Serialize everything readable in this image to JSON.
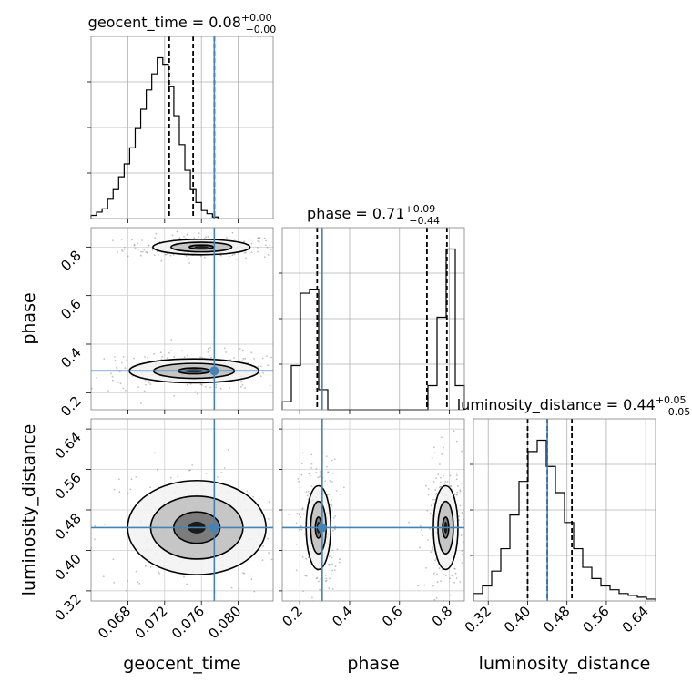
{
  "chart_data": [
    {
      "type": "histogram",
      "panel": "geocent_time",
      "title_param": "geocent_time",
      "title_median": "0.08",
      "title_plus": "+0.00",
      "title_minus": "−0.00",
      "xlim": [
        0.064,
        0.0838
      ],
      "bins_left": 0.064,
      "bin_width": 0.0006,
      "counts": [
        2,
        4,
        6,
        12,
        18,
        26,
        34,
        44,
        56,
        68,
        80,
        90,
        100,
        96,
        82,
        64,
        46,
        30,
        18,
        10,
        5,
        3,
        1
      ],
      "quantiles": [
        0.0725,
        0.0751,
        0.0774
      ],
      "injection": 0.0774
    },
    {
      "type": "histogram",
      "panel": "phase",
      "title_param": "phase",
      "title_median": "0.71",
      "title_plus": "+0.09",
      "title_minus": "−0.44",
      "xlim": [
        0.13,
        0.86
      ],
      "bins_left": 0.13,
      "bin_width": 0.0365,
      "counts": [
        4,
        22,
        58,
        60,
        10,
        0,
        0,
        0,
        0,
        0,
        0,
        0,
        0,
        0,
        0,
        0,
        12,
        46,
        80,
        12
      ],
      "quantiles": [
        0.27,
        0.71,
        0.79
      ],
      "injection": 0.29
    },
    {
      "type": "histogram",
      "panel": "luminosity_distance",
      "title_param": "luminosity_distance",
      "title_median": "0.44",
      "title_plus": "+0.05",
      "title_minus": "−0.05",
      "xlim": [
        0.29,
        0.66
      ],
      "bins_left": 0.29,
      "bin_width": 0.0185,
      "counts": [
        4,
        8,
        16,
        28,
        46,
        64,
        80,
        86,
        72,
        58,
        42,
        28,
        18,
        12,
        8,
        6,
        4,
        3,
        2,
        1
      ],
      "quantiles": [
        0.4,
        0.44,
        0.49
      ],
      "injection": 0.44
    },
    {
      "type": "contour",
      "panel": "phase vs geocent_time",
      "x_param": "geocent_time",
      "y_param": "phase",
      "xlim": [
        0.064,
        0.0838
      ],
      "ylim": [
        0.13,
        0.88
      ],
      "modes": [
        {
          "cx": 0.076,
          "cy": 0.8,
          "sx": 0.003,
          "sy": 0.018
        },
        {
          "cx": 0.0752,
          "cy": 0.29,
          "sx": 0.004,
          "sy": 0.028
        }
      ],
      "contour_levels": [
        0.4,
        1.0,
        1.6
      ],
      "truth": {
        "x": 0.0774,
        "y": 0.29
      }
    },
    {
      "type": "contour",
      "panel": "luminosity_distance vs geocent_time",
      "x_param": "geocent_time",
      "y_param": "luminosity_distance",
      "xlim": [
        0.064,
        0.0838
      ],
      "ylim": [
        0.3,
        0.66
      ],
      "modes": [
        {
          "cx": 0.0755,
          "cy": 0.445,
          "sx": 0.0038,
          "sy": 0.047
        }
      ],
      "contour_levels": [
        0.6,
        1.2,
        1.8
      ],
      "truth": {
        "x": 0.0774,
        "y": 0.445
      }
    },
    {
      "type": "contour",
      "panel": "luminosity_distance vs phase",
      "x_param": "phase",
      "y_param": "luminosity_distance",
      "xlim": [
        0.13,
        0.86
      ],
      "ylim": [
        0.3,
        0.66
      ],
      "modes": [
        {
          "cx": 0.275,
          "cy": 0.445,
          "sx": 0.028,
          "sy": 0.047
        },
        {
          "cx": 0.785,
          "cy": 0.445,
          "sx": 0.028,
          "sy": 0.047
        }
      ],
      "contour_levels": [
        0.4,
        1.0,
        1.6
      ],
      "truth": {
        "x": 0.29,
        "y": 0.445
      }
    }
  ],
  "axes": {
    "geocent_time": {
      "label": "geocent_time",
      "ticks": [
        0.068,
        0.072,
        0.076,
        0.08
      ],
      "ticklabels": [
        "0.068",
        "0.072",
        "0.076",
        "0.080"
      ]
    },
    "phase_x": {
      "label": "phase",
      "ticks": [
        0.2,
        0.4,
        0.6,
        0.8
      ],
      "ticklabels": [
        "0.2",
        "0.4",
        "0.6",
        "0.8"
      ]
    },
    "phase_y": {
      "label": "phase",
      "ticks": [
        0.2,
        0.4,
        0.6,
        0.8
      ],
      "ticklabels": [
        "0.2",
        "0.4",
        "0.6",
        "0.8"
      ]
    },
    "luminosity_distance_x": {
      "label": "luminosity_distance",
      "ticks": [
        0.32,
        0.4,
        0.48,
        0.56,
        0.64
      ],
      "ticklabels": [
        "0.32",
        "0.40",
        "0.48",
        "0.56",
        "0.64"
      ]
    },
    "luminosity_distance_y": {
      "label": "luminosity_distance",
      "ticks": [
        0.32,
        0.4,
        0.48,
        0.56,
        0.64
      ],
      "ticklabels": [
        "0.32",
        "0.40",
        "0.48",
        "0.56",
        "0.64"
      ]
    }
  },
  "style": {
    "truth_color": "#4682b4",
    "hist_color": "#000000",
    "quantile_color": "#000000",
    "grid": true
  }
}
